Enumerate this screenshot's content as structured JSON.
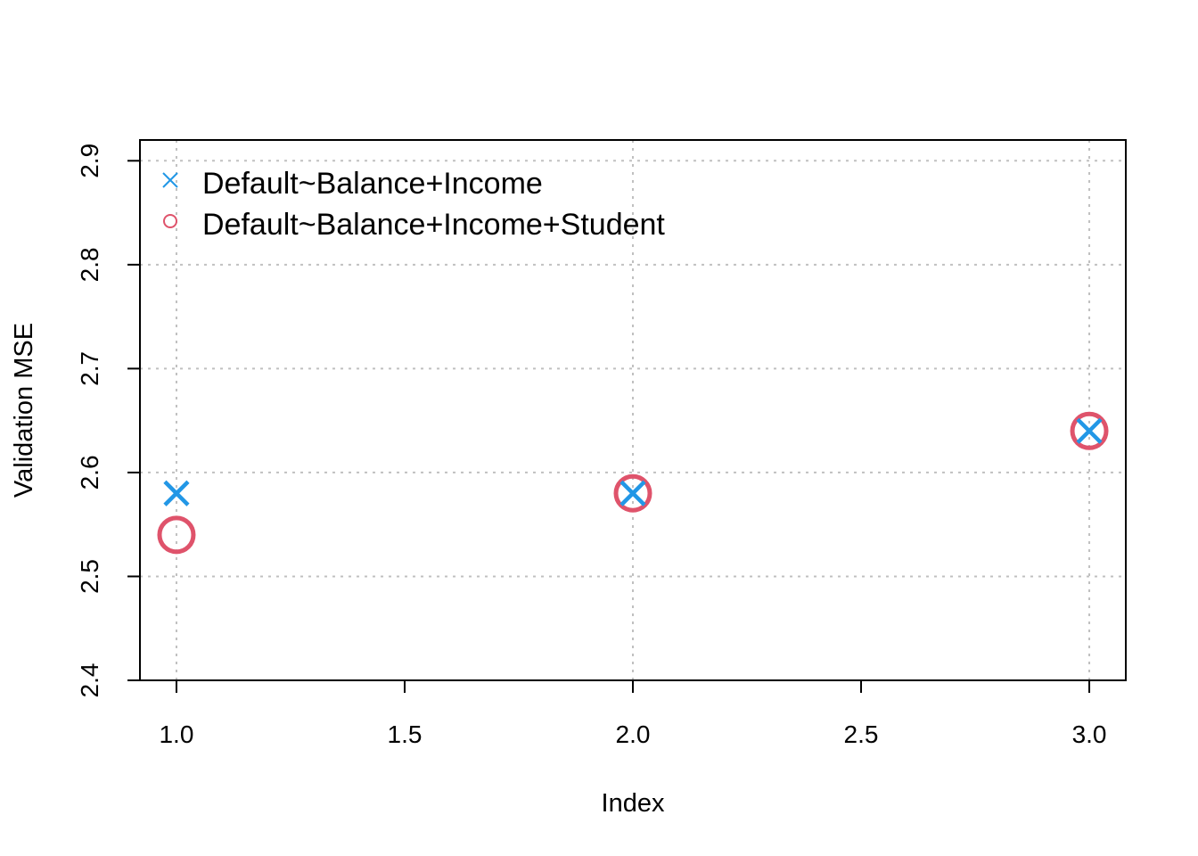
{
  "chart_data": {
    "type": "scatter",
    "xlabel": "Index",
    "ylabel": "Validation MSE",
    "xlim": [
      0.92,
      3.08
    ],
    "ylim": [
      2.4,
      2.92
    ],
    "x_ticks": [
      "1.0",
      "1.5",
      "2.0",
      "2.5",
      "3.0"
    ],
    "y_ticks": [
      "2.4",
      "2.5",
      "2.6",
      "2.7",
      "2.8",
      "2.9"
    ],
    "grid": true,
    "legend_position": "top-left",
    "series": [
      {
        "name": "Default~Balance+Income",
        "marker": "cross",
        "color": "#2297E6",
        "x": [
          1,
          2,
          3
        ],
        "y": [
          2.58,
          2.58,
          2.64
        ]
      },
      {
        "name": "Default~Balance+Income+Student",
        "marker": "circle",
        "color": "#DF536B",
        "x": [
          1,
          2,
          3
        ],
        "y": [
          2.54,
          2.58,
          2.64
        ]
      }
    ]
  }
}
